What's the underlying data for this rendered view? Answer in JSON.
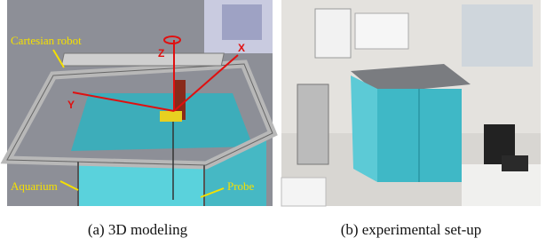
{
  "figure": {
    "panels": [
      {
        "annotations": [
          "Cartesian robot",
          "Aquarium",
          "Probe",
          "Z",
          "X",
          "Y"
        ],
        "caption": "(a) 3D modeling"
      },
      {
        "caption": "(b) experimental set-up"
      }
    ]
  }
}
